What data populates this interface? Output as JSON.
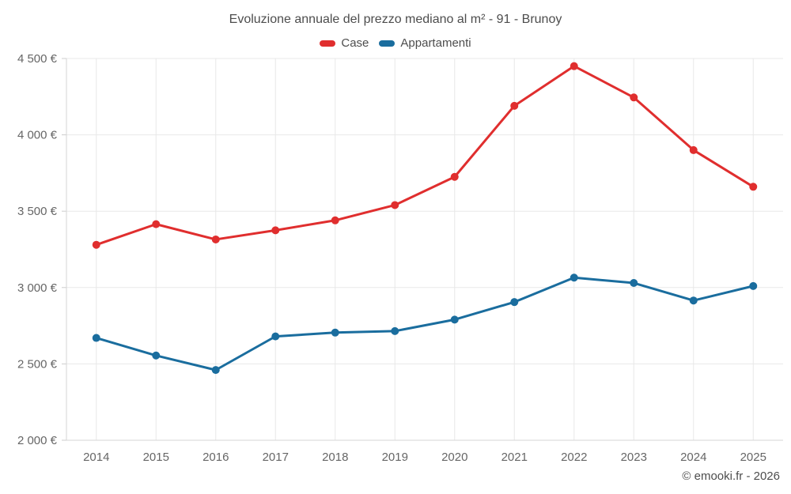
{
  "footer": {
    "copyright": "© emooki.fr - 2026"
  },
  "chart_data": {
    "type": "line",
    "title": "Evoluzione annuale del prezzo mediano al m² - 91 - Brunoy",
    "xlabel": "",
    "ylabel": "",
    "categories": [
      "2014",
      "2015",
      "2016",
      "2017",
      "2018",
      "2019",
      "2020",
      "2021",
      "2022",
      "2023",
      "2024",
      "2025"
    ],
    "series": [
      {
        "name": "Case",
        "color": "#e02e2e",
        "values": [
          3280,
          3415,
          3315,
          3375,
          3440,
          3540,
          3725,
          4190,
          4450,
          4245,
          3900,
          3660
        ]
      },
      {
        "name": "Appartamenti",
        "color": "#1a6d9e",
        "values": [
          2670,
          2555,
          2460,
          2680,
          2705,
          2715,
          2790,
          2905,
          3065,
          3030,
          2915,
          3010
        ]
      }
    ],
    "ylim": [
      2000,
      4500
    ],
    "yticks": [
      {
        "value": 2000,
        "label": "2 000 €"
      },
      {
        "value": 2500,
        "label": "2 500 €"
      },
      {
        "value": 3000,
        "label": "3 000 €"
      },
      {
        "value": 3500,
        "label": "3 500 €"
      },
      {
        "value": 4000,
        "label": "4 000 €"
      },
      {
        "value": 4500,
        "label": "4 500 €"
      }
    ],
    "grid": true,
    "legend_position": "top"
  }
}
